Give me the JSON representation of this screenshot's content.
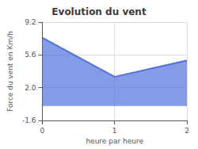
{
  "chart_data": {
    "type": "area",
    "title": "Evolution du vent",
    "xlabel": "heure par heure",
    "ylabel": "Force du vent en Km/h",
    "x": [
      0,
      1,
      2
    ],
    "values": [
      7.5,
      3.2,
      5.0
    ],
    "xlim": [
      0,
      2
    ],
    "xticks": [
      0,
      1,
      2
    ],
    "ylim": [
      -1.6,
      9.2
    ],
    "yticks": [
      -1.6,
      {
        "value": 2.0,
        "label": "2.0"
      },
      5.6,
      9.2
    ],
    "grid": true
  }
}
